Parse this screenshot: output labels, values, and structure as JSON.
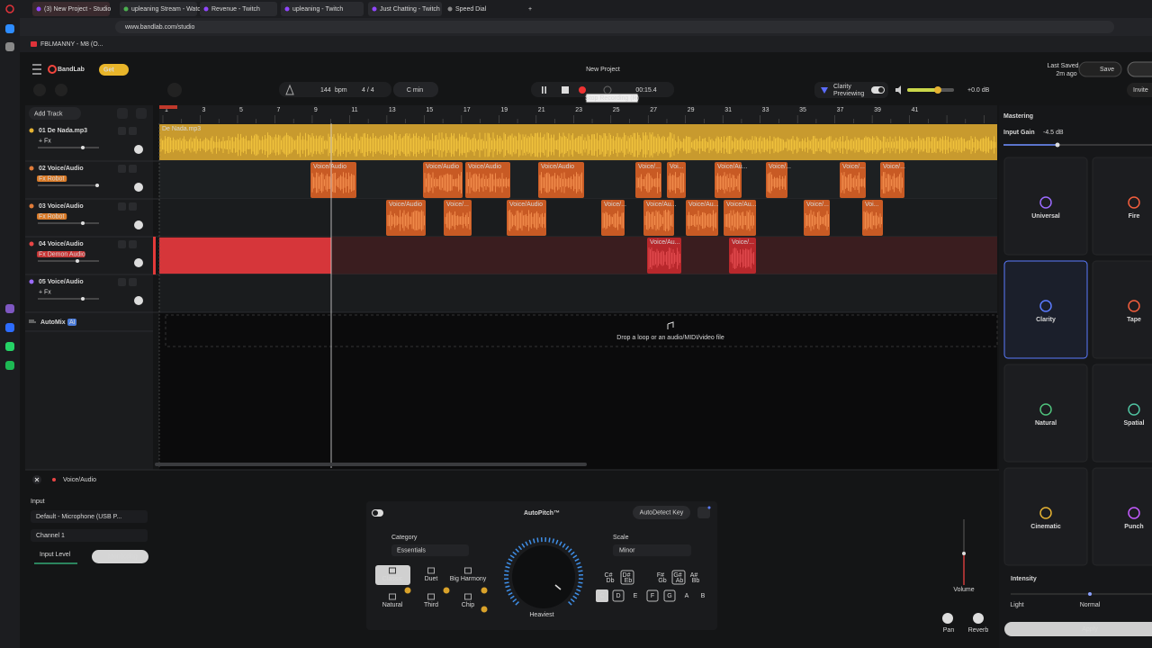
{
  "browser": {
    "tabs": [
      "(3) New Project - Studio",
      "upleaning Stream - Watch",
      "Revenue - Twitch",
      "upleaning - Twitch",
      "Just Chatting - Twitch",
      "Speed Dial"
    ],
    "url": "www.bandlab.com/studio",
    "bookmark": "FBLMANNY - M8 (O..."
  },
  "header": {
    "logo": "BandLab",
    "get": "Get",
    "project": "New Project",
    "last_saved": "Last Saved",
    "saved_ago": "2m ago",
    "save": "Save",
    "invite": "Invite"
  },
  "transport": {
    "bpm": "144",
    "bpm_unit": "bpm",
    "meter": "4 / 4",
    "key": "C min",
    "time": "00:15.4",
    "tooltip": "Stop Recording (R)",
    "preset": "Clarity",
    "preset_state": "Previewing",
    "gain": "+0.0 dB"
  },
  "tracks": {
    "add": "Add Track",
    "ruler": [
      "1",
      "3",
      "5",
      "7",
      "9",
      "11",
      "13",
      "15",
      "17",
      "19",
      "21",
      "23",
      "25",
      "27",
      "29",
      "31",
      "33",
      "35",
      "37",
      "39",
      "41"
    ],
    "list": [
      {
        "name": "01 De Nada.mp3",
        "fx": "+ Fx",
        "clips": [
          "De Nada.mp3"
        ]
      },
      {
        "name": "02 Voice/Audio",
        "fx": "Fx Robot",
        "clips": [
          "Voice/Audio",
          "Voice/Audio",
          "Voice/Audio",
          "Voice/Audio",
          "Voice/...",
          "Voi...",
          "Voice/Au...",
          "Voice/...",
          "Voice/...",
          "Voice/..."
        ]
      },
      {
        "name": "03 Voice/Audio",
        "fx": "Fx Robot",
        "clips": [
          "Voice/Audio",
          "Voice/...",
          "Voice/Audio",
          "Voice/...",
          "Voice/Au...",
          "Voice/Au...",
          "Voice/Au...",
          "Voice/...",
          "Voi..."
        ]
      },
      {
        "name": "04 Voice/Audio",
        "fx": "Fx Demon Audio",
        "clips": [
          "Voice/Au...",
          "Voice/..."
        ]
      },
      {
        "name": "05 Voice/Audio",
        "fx": "+ Fx",
        "clips": []
      }
    ],
    "automix": "AutoMix",
    "ai": "AI",
    "drop": "Drop a loop or an audio/MIDI/video file"
  },
  "mastering": {
    "title": "Mastering",
    "input_gain": "Input Gain",
    "gain_value": "-4.5 dB",
    "presets": [
      "Universal",
      "Fire",
      "Clarity",
      "Tape",
      "Natural",
      "Spatial",
      "Cinematic",
      "Punch"
    ],
    "intensity": "Intensity",
    "light": "Light",
    "normal": "Normal",
    "apply": "Apply"
  },
  "editor": {
    "track": "Voice/Audio",
    "input": "Input",
    "device": "Default - Microphone (USB P...",
    "channel": "Channel 1",
    "input_level": "Input Level",
    "monitoring": "Monitoring",
    "autopitch": {
      "title": "AutoPitch™",
      "detect": "AutoDetect Key",
      "category": "Category",
      "category_value": "Essentials",
      "styles": [
        "Classic",
        "Duet",
        "Big Harmony",
        "Natural",
        "Third",
        "Chip"
      ],
      "dial": "Heaviest",
      "scale": "Scale",
      "scale_value": "Minor",
      "sharps": [
        [
          "C#",
          "Db"
        ],
        [
          "D#",
          "Eb"
        ],
        [
          "F#",
          "Gb"
        ],
        [
          "G#",
          "Ab"
        ],
        [
          "A#",
          "Bb"
        ]
      ],
      "naturals": [
        "C",
        "D",
        "E",
        "F",
        "G",
        "A",
        "B"
      ]
    },
    "volume": "Volume",
    "pan": "Pan",
    "reverb": "Reverb"
  }
}
